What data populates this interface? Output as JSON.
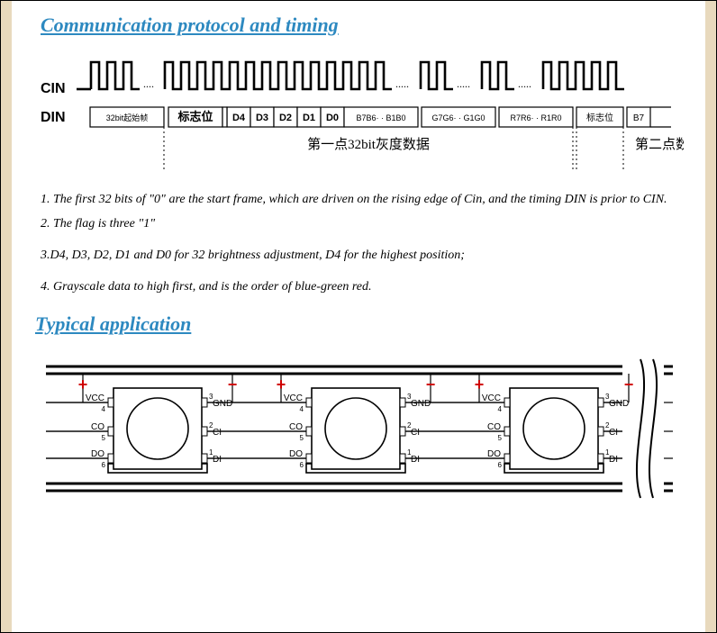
{
  "headings": {
    "protocol": "Communication protocol and timing",
    "application": "Typical application"
  },
  "timing": {
    "cin_label": "CIN",
    "din_label": "DIN",
    "start_frame": "32bit起始帧",
    "flag": "标志位",
    "brightness_bits": [
      "D4",
      "D3",
      "D2",
      "D1",
      "D0"
    ],
    "blue": "B7B6· · B1B0",
    "green": "G7G6· · G1G0",
    "red": "R7R6· · R1R0",
    "flag2": "标志位",
    "next": "B7",
    "caption1": "第一点32bit灰度数据",
    "caption2": "第二点数据",
    "stroke": "#000000",
    "font_cjk": 13,
    "font_latin": 10,
    "font_lbl": 16
  },
  "notes": {
    "n1": "1. The first 32 bits of \"0\" are the start frame, which are driven on the rising edge of Cin, and the timing DIN is prior to CIN.",
    "n2": "2. The flag is three \"1\"",
    "n3": "3.D4, D3, D2, D1 and D0 for 32 brightness adjustment, D4 for the highest position;",
    "n4": "4. Grayscale data to high first, and is the order of blue-green red."
  },
  "app": {
    "pin_vcc": "VCC",
    "pin_vcc_n": "4",
    "pin_co": "CO",
    "pin_co_n": "5",
    "pin_do": "DO",
    "pin_do_n": "6",
    "pin_gnd": "GND",
    "pin_gnd_n": "3",
    "pin_ci": "CI",
    "pin_ci_n": "2",
    "pin_di": "DI",
    "pin_di_n": "1",
    "plus": "+",
    "minus": "−",
    "stroke": "#000000",
    "stroke_w": 1.6,
    "bus_stroke_w": 3,
    "chip_color": "#ffffff",
    "chip_border": "#000000",
    "font_pin": 10,
    "font_num": 8,
    "font_sign": 18,
    "plus_color": "#d00000",
    "minus_color": "#d00000"
  }
}
